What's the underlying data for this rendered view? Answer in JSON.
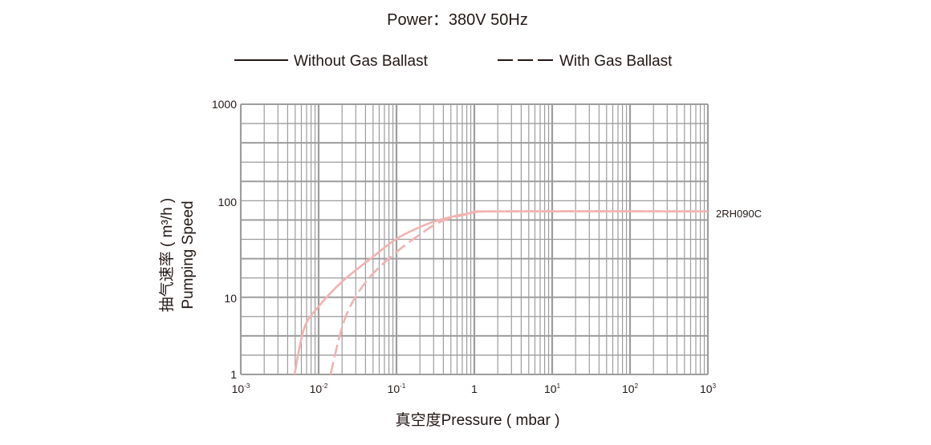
{
  "chart_data": {
    "type": "line",
    "title": "Power：380V 50Hz",
    "xlabel": "真空度Pressure ( mbar )",
    "ylabel_cn": "抽气速率 ( m³/h )",
    "ylabel_en": "Pumping Speed",
    "x_scale": "log",
    "y_scale": "log",
    "xlim": [
      0.001,
      1000
    ],
    "ylim": [
      1,
      1000
    ],
    "grid": true,
    "legend_position": "top",
    "x_ticks": [
      {
        "base": "10",
        "exp": "-3"
      },
      {
        "base": "10",
        "exp": "-2"
      },
      {
        "base": "10",
        "exp": "-1"
      },
      {
        "base": "1",
        "exp": ""
      },
      {
        "base": "10",
        "exp": "1"
      },
      {
        "base": "10",
        "exp": "2"
      },
      {
        "base": "10",
        "exp": "3"
      }
    ],
    "y_ticks": [
      "1000",
      "100",
      "10",
      "1"
    ],
    "curve_label": "2RH090C",
    "curve_color": "#f2b3b0",
    "grid_color": "#9d9d9d",
    "series": [
      {
        "name": "Without Gas Ballast",
        "style": "solid",
        "x": [
          0.0049,
          0.0065,
          0.0099,
          0.0202,
          0.05,
          0.098,
          0.2,
          0.378,
          1,
          2,
          1000
        ],
        "y": [
          1,
          4,
          7.7,
          15,
          27,
          41,
          55,
          66,
          78,
          80,
          80
        ]
      },
      {
        "name": "With Gas Ballast",
        "style": "dashed",
        "x": [
          0.0142,
          0.0219,
          0.041,
          0.094,
          0.2,
          0.378,
          0.83,
          2,
          1000
        ],
        "y": [
          1,
          5.5,
          15,
          29,
          46,
          63,
          75,
          80,
          80
        ]
      }
    ]
  }
}
